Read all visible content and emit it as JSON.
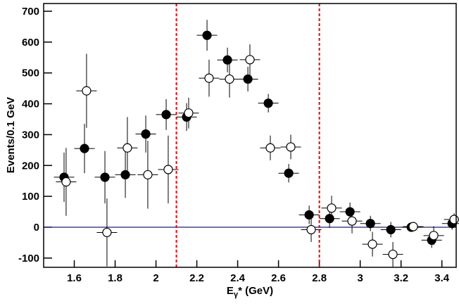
{
  "chart_data": {
    "type": "errorbar",
    "x_label": {
      "main": "E",
      "sub": "γ",
      "rest": "* (GeV)"
    },
    "y_label": "Events/0.1 GeV",
    "xlim": [
      1.45,
      3.47
    ],
    "ylim": [
      -130,
      725
    ],
    "xticks": [
      1.6,
      1.8,
      2,
      2.2,
      2.4,
      2.6,
      2.8,
      3,
      3.2,
      3.4
    ],
    "yticks": [
      -100,
      0,
      100,
      200,
      300,
      400,
      500,
      600,
      700
    ],
    "vlines": [
      2.1,
      2.8
    ],
    "vline_color": "#e8000b",
    "hline": 0,
    "hline_color": "#1a1aa0",
    "series": [
      {
        "marker": "filled",
        "color": "#000000",
        "xerr": 0.05,
        "x": [
          1.55,
          1.65,
          1.75,
          1.85,
          1.95,
          2.05,
          2.15,
          2.25,
          2.35,
          2.45,
          2.55,
          2.65,
          2.75,
          2.85,
          2.95,
          3.05,
          3.15,
          3.25,
          3.35,
          3.45
        ],
        "values": [
          162,
          255,
          162,
          170,
          302,
          365,
          357,
          622,
          542,
          480,
          402,
          175,
          40,
          28,
          50,
          12,
          -8,
          0,
          -42,
          12
        ],
        "errors": [
          80,
          80,
          85,
          75,
          60,
          50,
          45,
          50,
          40,
          40,
          30,
          30,
          30,
          30,
          30,
          25,
          25,
          10,
          25,
          20
        ]
      },
      {
        "marker": "open",
        "color": "#000000",
        "xerr": 0.05,
        "x": [
          1.56,
          1.66,
          1.76,
          1.86,
          1.96,
          2.06,
          2.16,
          2.26,
          2.36,
          2.46,
          2.56,
          2.66,
          2.76,
          2.86,
          2.96,
          3.06,
          3.16,
          3.26,
          3.36,
          3.46
        ],
        "values": [
          147,
          442,
          -17,
          257,
          170,
          187,
          370,
          483,
          480,
          543,
          257,
          260,
          -8,
          62,
          20,
          -55,
          -88,
          2,
          -27,
          25
        ],
        "errors": [
          110,
          120,
          110,
          100,
          110,
          110,
          50,
          60,
          60,
          50,
          40,
          40,
          40,
          40,
          40,
          40,
          40,
          10,
          30,
          20
        ]
      }
    ]
  }
}
